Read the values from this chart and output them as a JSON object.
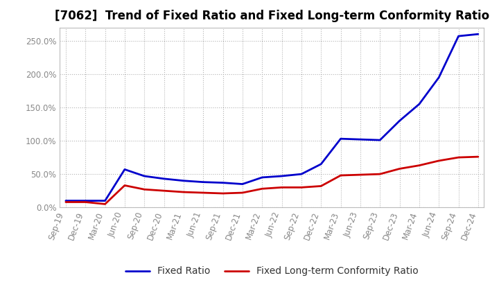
{
  "title": "[7062]  Trend of Fixed Ratio and Fixed Long-term Conformity Ratio",
  "x_labels": [
    "Sep-19",
    "Dec-19",
    "Mar-20",
    "Jun-20",
    "Sep-20",
    "Dec-20",
    "Mar-21",
    "Jun-21",
    "Sep-21",
    "Dec-21",
    "Mar-22",
    "Jun-22",
    "Sep-22",
    "Dec-22",
    "Mar-23",
    "Jun-23",
    "Sep-23",
    "Dec-23",
    "Mar-24",
    "Jun-24",
    "Sep-24",
    "Dec-24"
  ],
  "fixed_ratio": [
    10.0,
    10.0,
    10.0,
    57.0,
    47.0,
    43.0,
    40.0,
    38.0,
    37.0,
    35.0,
    45.0,
    47.0,
    50.0,
    65.0,
    103.0,
    102.0,
    101.0,
    130.0,
    155.0,
    195.0,
    257.0,
    260.0
  ],
  "fixed_lt_ratio": [
    8.0,
    8.0,
    5.0,
    33.0,
    27.0,
    25.0,
    23.0,
    22.0,
    21.0,
    22.0,
    28.0,
    30.0,
    30.0,
    32.0,
    48.0,
    49.0,
    50.0,
    58.0,
    63.0,
    70.0,
    75.0,
    76.0
  ],
  "fixed_ratio_color": "#0000cc",
  "fixed_lt_ratio_color": "#cc0000",
  "background_color": "#ffffff",
  "plot_bg_color": "#ffffff",
  "grid_color": "#aaaaaa",
  "ylim": [
    0.0,
    270.0
  ],
  "yticks": [
    0.0,
    50.0,
    100.0,
    150.0,
    200.0,
    250.0
  ],
  "line_width": 2.0,
  "title_fontsize": 12,
  "legend_fontsize": 10,
  "tick_fontsize": 8.5,
  "tick_color": "#888888",
  "spine_color": "#bbbbbb"
}
